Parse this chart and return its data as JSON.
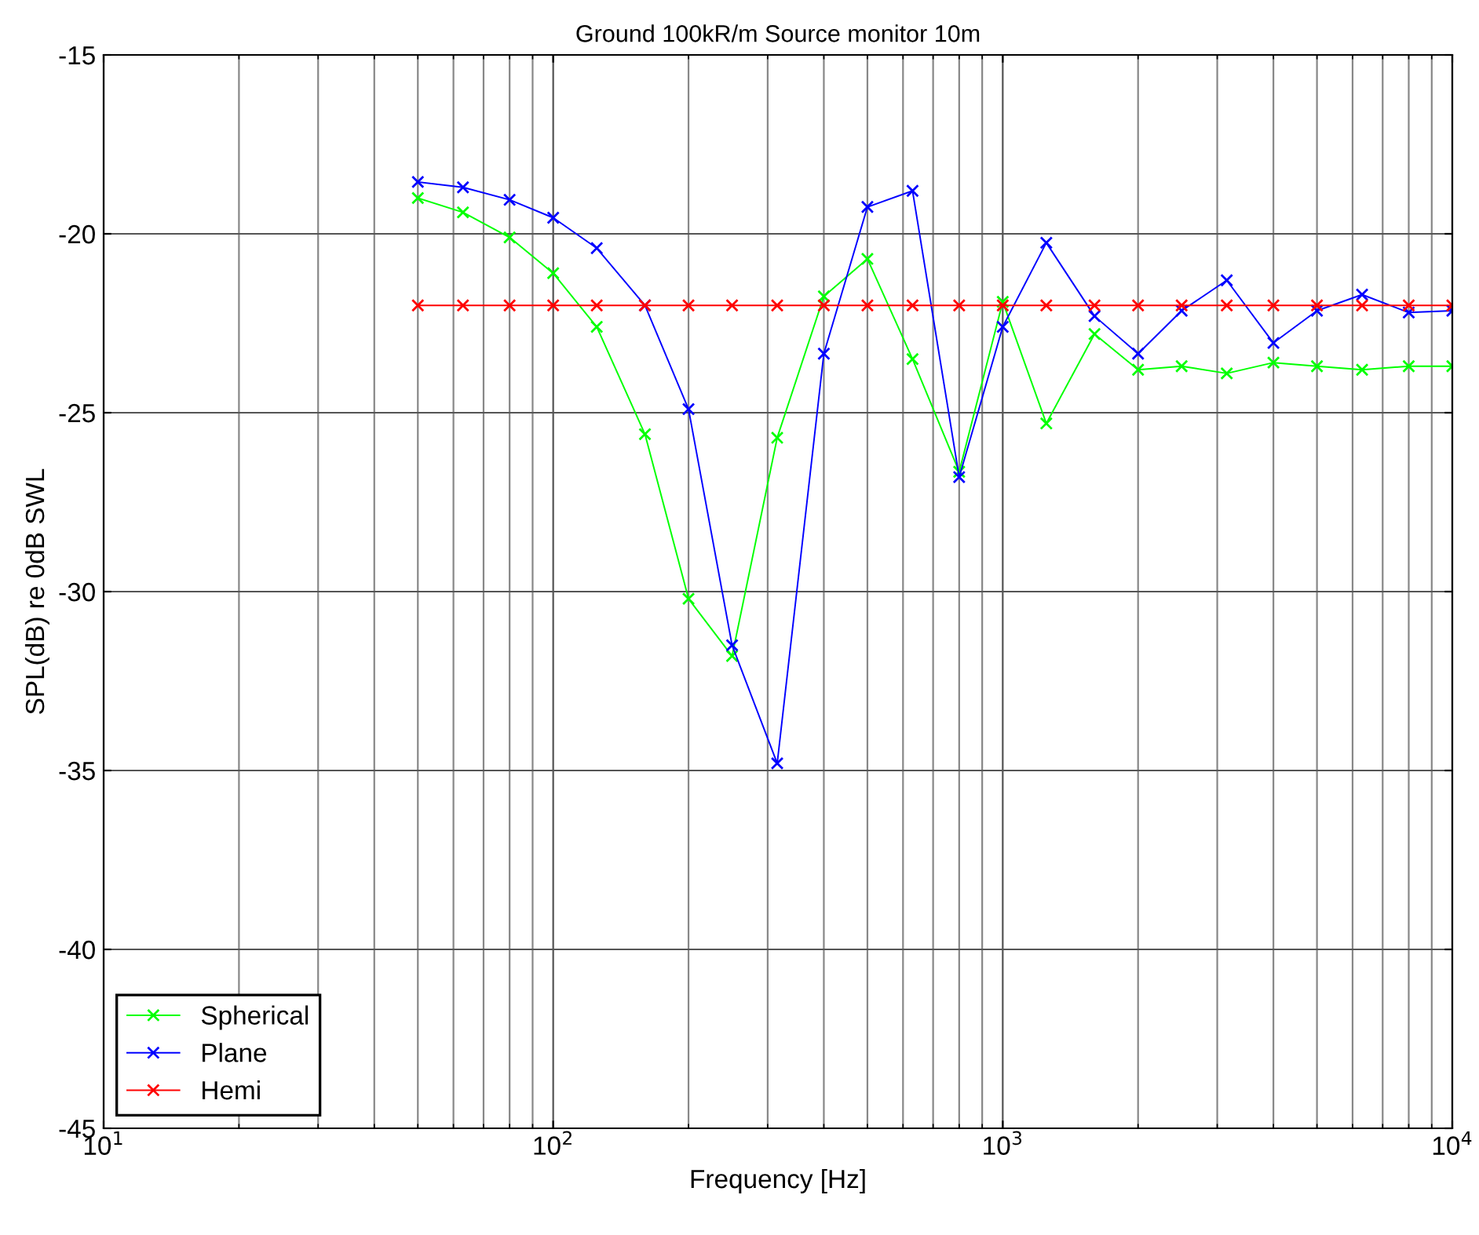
{
  "chart_data": {
    "type": "line",
    "title": "Ground 100kR/m Source monitor 10m",
    "xlabel": "Frequency [Hz]",
    "ylabel": "SPL(dB) re 0dB SWL",
    "x": [
      50,
      63,
      80,
      100,
      125,
      160,
      200,
      250,
      315,
      400,
      500,
      630,
      800,
      1000,
      1250,
      1600,
      2000,
      2500,
      3150,
      4000,
      5000,
      6300,
      8000,
      10000
    ],
    "series": [
      {
        "name": "Spherical",
        "color": "#00ff00",
        "values": [
          -19.0,
          -19.4,
          -20.1,
          -21.1,
          -22.6,
          -25.6,
          -30.2,
          -31.8,
          -25.7,
          -21.75,
          -20.7,
          -23.5,
          -26.65,
          -21.9,
          -25.3,
          -22.8,
          -23.8,
          -23.7,
          -23.9,
          -23.6,
          -23.7,
          -23.8,
          -23.7,
          -23.7
        ]
      },
      {
        "name": "Plane",
        "color": "#0000ff",
        "values": [
          -18.55,
          -18.7,
          -19.05,
          -19.55,
          -20.4,
          -22.0,
          -24.9,
          -31.5,
          -34.8,
          -23.35,
          -19.25,
          -18.8,
          -26.8,
          -22.6,
          -20.25,
          -22.3,
          -23.35,
          -22.15,
          -21.3,
          -23.05,
          -22.15,
          -21.7,
          -22.2,
          -22.15
        ]
      },
      {
        "name": "Hemi",
        "color": "#ff0000",
        "values": [
          -22,
          -22,
          -22,
          -22,
          -22,
          -22,
          -22,
          -22,
          -22,
          -22,
          -22,
          -22,
          -22,
          -22,
          -22,
          -22,
          -22,
          -22,
          -22,
          -22,
          -22,
          -22,
          -22,
          -22
        ]
      }
    ],
    "log": "x",
    "xlim": [
      10,
      10000
    ],
    "xticks": [
      {
        "value": 10,
        "label": "10$^{1}$"
      },
      {
        "value": 100,
        "label": "10$^{2}$"
      },
      {
        "value": 1000,
        "label": "10$^{3}$"
      },
      {
        "value": 10000,
        "label": "10$^{4}$"
      }
    ],
    "ylim": [
      -45,
      -15
    ],
    "yticks": [
      -45,
      -40,
      -35,
      -30,
      -25,
      -20,
      -15
    ],
    "grid": true,
    "legend": "bottom left",
    "marker": "cross",
    "line_style": "solid"
  }
}
